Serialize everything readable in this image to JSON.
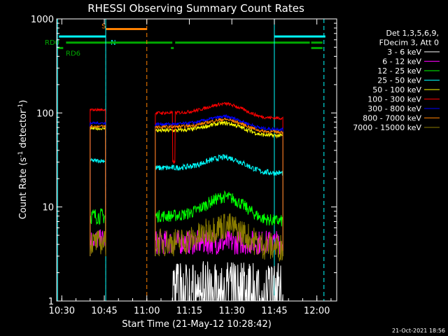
{
  "chart_data": {
    "type": "line",
    "title": "RHESSI Observing Summary Count Rates",
    "xlabel": "Start Time (21-May-12 10:28:42)",
    "ylabel_main": "Count Rate (s",
    "ylabel_sup1": "-1",
    "ylabel_mid": " detector",
    "ylabel_sup2": "-1",
    "ylabel_end": ")",
    "y_scale": "log",
    "ylim": [
      1,
      1000
    ],
    "xlim": [
      "10:28",
      "12:07"
    ],
    "grid": false,
    "legend_position": "right",
    "timestamp": "21-Oct-2021 18:56",
    "x_ticks": [
      {
        "label": "10:30",
        "min": 630
      },
      {
        "label": "10:45",
        "min": 645
      },
      {
        "label": "11:00",
        "min": 660
      },
      {
        "label": "11:15",
        "min": 675
      },
      {
        "label": "11:30",
        "min": 690
      },
      {
        "label": "11:45",
        "min": 705
      },
      {
        "label": "12:00",
        "min": 720
      }
    ],
    "y_ticks": [
      {
        "label": "1",
        "value": 1
      },
      {
        "label": "10",
        "value": 10
      },
      {
        "label": "100",
        "value": 100
      },
      {
        "label": "1000",
        "value": 1000
      }
    ],
    "legend_header": [
      "Det 1,3,5,6,9,",
      "FDecim 3, Att 0"
    ],
    "series": [
      {
        "name": "3 - 6 keV",
        "color": "#ffffff",
        "segments": [
          {
            "from": 669,
            "to": 708,
            "level": 1.7,
            "noise": 0.45,
            "floor": 1
          }
        ]
      },
      {
        "name": "6 - 12 keV",
        "color": "#ff00ff",
        "segments": [
          {
            "from": 640,
            "to": 645.5,
            "level": 4.5,
            "noise": 0.25
          },
          {
            "from": 663,
            "to": 708,
            "level": 4.2,
            "noise": 0.3
          }
        ]
      },
      {
        "name": "12 - 25 keV",
        "color": "#00ff00",
        "segments": [
          {
            "from": 640,
            "to": 645.5,
            "level": 8,
            "noise": 0.2
          },
          {
            "from": 663,
            "to": 708,
            "level": 8,
            "noise": 0.15,
            "bump": 1.6
          }
        ]
      },
      {
        "name": "25 - 50 keV",
        "color": "#00ffff",
        "segments": [
          {
            "from": 640,
            "to": 645.5,
            "level": 31,
            "noise": 0.05
          },
          {
            "from": 663,
            "to": 708,
            "level": 26,
            "noise": 0.07,
            "bump": 1.3
          }
        ]
      },
      {
        "name": "50 - 100 keV",
        "color": "#ffff00",
        "segments": [
          {
            "from": 640,
            "to": 645.5,
            "level": 68,
            "noise": 0.03
          },
          {
            "from": 663,
            "to": 708,
            "level": 65,
            "noise": 0.05,
            "bump": 1.2
          }
        ]
      },
      {
        "name": "100 - 300 keV",
        "color": "#ff0000",
        "segments": [
          {
            "from": 640,
            "to": 645.5,
            "level": 108,
            "noise": 0.03
          },
          {
            "from": 663,
            "to": 708,
            "level": 100,
            "noise": 0.04,
            "bump": 1.25,
            "dip": 669.5
          }
        ]
      },
      {
        "name": "300 - 800 keV",
        "color": "#0000ff",
        "segments": [
          {
            "from": 640,
            "to": 645.5,
            "level": 78,
            "noise": 0.03
          },
          {
            "from": 663,
            "to": 708,
            "level": 76,
            "noise": 0.04,
            "bump": 1.2
          }
        ]
      },
      {
        "name": "800 - 7000 keV",
        "color": "#ff8000",
        "segments": [
          {
            "from": 640,
            "to": 645.5,
            "level": 72,
            "noise": 0.03
          },
          {
            "from": 663,
            "to": 708,
            "level": 71,
            "noise": 0.04,
            "bump": 1.2
          }
        ]
      },
      {
        "name": "7000 - 15000 keV",
        "color": "#8b7d00",
        "segments": [
          {
            "from": 640,
            "to": 645.5,
            "level": 4.2,
            "noise": 0.3
          },
          {
            "from": 663,
            "to": 708,
            "level": 4.2,
            "noise": 0.35,
            "bump": 1.5
          }
        ]
      }
    ],
    "flags": [
      {
        "label": "S",
        "color": "#ff8000",
        "bars": [
          [
            645.5,
            660
          ]
        ],
        "level": 780
      },
      {
        "label": "N",
        "color": "#00ffff",
        "bars": [
          [
            629,
            645.5
          ],
          [
            705,
            723
          ]
        ],
        "level": 650
      },
      {
        "label": "RD0",
        "color": "#00aa00",
        "bars": [
          [
            631.5,
            669
          ],
          [
            670,
            717.5
          ],
          [
            718,
            722
          ]
        ],
        "level": 560
      },
      {
        "label": "RD6",
        "color": "#00aa00",
        "bars": [
          [
            628.5,
            630.5
          ],
          [
            668.5,
            669.5
          ],
          [
            718,
            722
          ]
        ],
        "level": 490
      }
    ],
    "vlines": [
      {
        "min": 645.5,
        "color": "#ff8000",
        "dashed": true
      },
      {
        "min": 660,
        "color": "#ff8000",
        "dashed": true
      },
      {
        "min": 628.5,
        "color": "#00ffff",
        "dashed": false
      },
      {
        "min": 645.5,
        "color": "#00ffff",
        "dashed": false
      },
      {
        "min": 705,
        "color": "#00ffff",
        "dashed": false
      },
      {
        "min": 722.5,
        "color": "#00ffff",
        "dashed": true
      }
    ]
  }
}
